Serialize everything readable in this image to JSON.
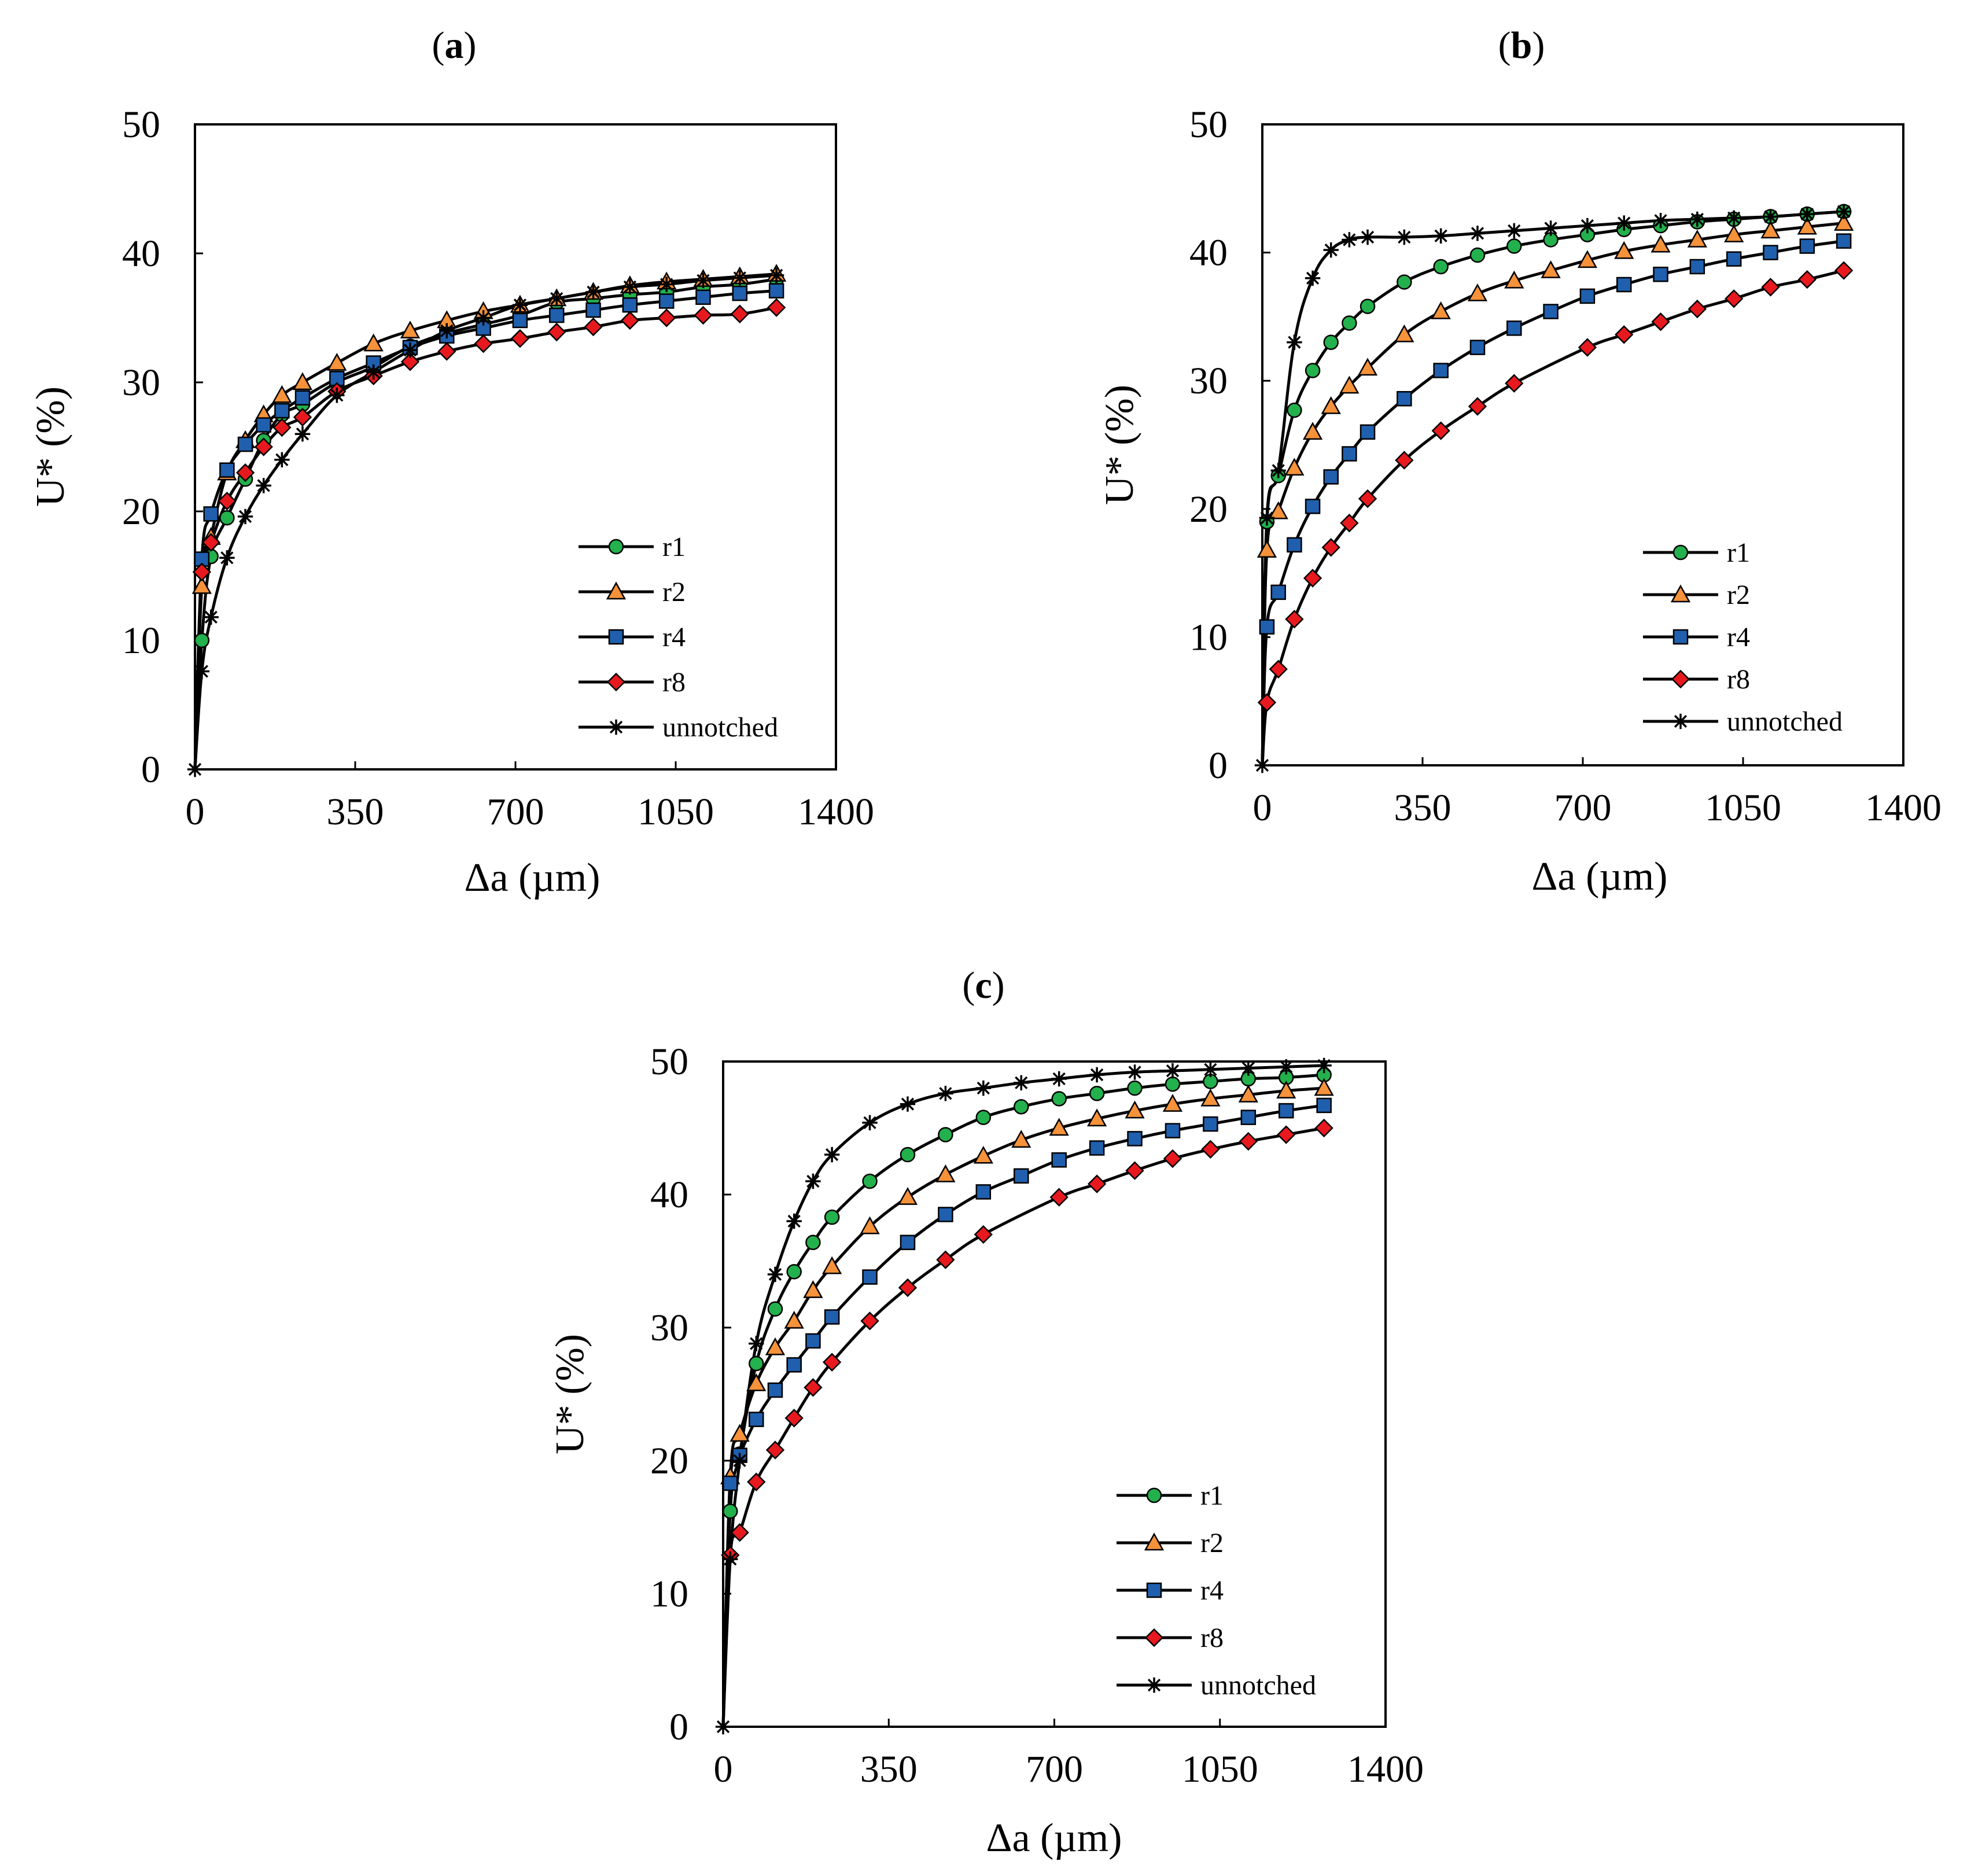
{
  "chart_data": [
    {
      "type": "line",
      "panel": "a",
      "title": "a",
      "xlabel": "Δa (µm)",
      "ylabel": "U* (%)",
      "xlim": [
        0,
        1400
      ],
      "ylim": [
        0,
        50
      ],
      "xticks": [
        0,
        350,
        700,
        1050,
        1400
      ],
      "yticks": [
        0,
        10,
        20,
        30,
        40,
        50
      ],
      "legend_position": "bottom-right",
      "series": [
        {
          "name": "r1",
          "marker": "circle",
          "color": "#22b14c",
          "x": [
            0,
            15,
            35,
            70,
            110,
            150,
            190,
            235,
            310,
            390,
            470,
            550,
            630,
            710,
            790,
            870,
            950,
            1030,
            1110,
            1190,
            1270
          ],
          "y": [
            0,
            10.0,
            16.5,
            19.5,
            22.5,
            25.5,
            27.5,
            28.3,
            30.0,
            31.2,
            32.8,
            33.8,
            34.5,
            35.2,
            36.2,
            36.5,
            36.8,
            37.0,
            37.4,
            37.6,
            38.0
          ]
        },
        {
          "name": "r2",
          "marker": "triangle",
          "color": "#f5923a",
          "x": [
            0,
            15,
            35,
            70,
            110,
            150,
            190,
            235,
            310,
            390,
            470,
            550,
            630,
            710,
            790,
            870,
            950,
            1030,
            1110,
            1190,
            1270
          ],
          "y": [
            0,
            14.2,
            18.0,
            23.0,
            25.5,
            27.5,
            29.0,
            30.0,
            31.5,
            33.0,
            34.0,
            34.8,
            35.5,
            36.0,
            36.5,
            37.0,
            37.5,
            37.8,
            38.0,
            38.2,
            38.4
          ]
        },
        {
          "name": "r4",
          "marker": "square",
          "color": "#1f5fad",
          "x": [
            0,
            15,
            35,
            70,
            110,
            150,
            190,
            235,
            310,
            390,
            470,
            550,
            630,
            710,
            790,
            870,
            950,
            1030,
            1110,
            1190,
            1270
          ],
          "y": [
            0,
            16.3,
            19.8,
            23.2,
            25.2,
            26.7,
            27.8,
            28.8,
            30.3,
            31.5,
            32.7,
            33.6,
            34.2,
            34.8,
            35.2,
            35.6,
            36.0,
            36.3,
            36.6,
            36.9,
            37.1
          ]
        },
        {
          "name": "r8",
          "marker": "diamond",
          "color": "#e8191e",
          "x": [
            0,
            15,
            35,
            70,
            110,
            150,
            190,
            235,
            310,
            390,
            470,
            550,
            630,
            710,
            790,
            870,
            950,
            1030,
            1110,
            1190,
            1270
          ],
          "y": [
            0,
            15.3,
            17.6,
            20.8,
            23.0,
            25.0,
            26.5,
            27.3,
            29.3,
            30.5,
            31.6,
            32.4,
            33.0,
            33.4,
            33.9,
            34.3,
            34.8,
            35.0,
            35.2,
            35.3,
            35.8
          ]
        },
        {
          "name": "unnotched",
          "marker": "star",
          "color": "#000000",
          "x": [
            0,
            15,
            35,
            70,
            110,
            150,
            190,
            235,
            310,
            390,
            470,
            550,
            630,
            710,
            790,
            870,
            950,
            1030,
            1110,
            1190,
            1270
          ],
          "y": [
            0,
            7.6,
            11.8,
            16.4,
            19.6,
            22.0,
            24.0,
            26.0,
            29.0,
            30.8,
            32.5,
            34.0,
            35.0,
            36.0,
            36.5,
            37.0,
            37.4,
            37.6,
            37.9,
            38.1,
            38.3
          ]
        }
      ]
    },
    {
      "type": "line",
      "panel": "b",
      "title": "b",
      "xlabel": "Δa (µm)",
      "ylabel": "U* (%)",
      "xlim": [
        0,
        1400
      ],
      "ylim": [
        0,
        50
      ],
      "xticks": [
        0,
        350,
        700,
        1050,
        1400
      ],
      "yticks": [
        0,
        10,
        20,
        30,
        40,
        50
      ],
      "legend_position": "bottom-right",
      "series": [
        {
          "name": "r1",
          "marker": "circle",
          "color": "#22b14c",
          "x": [
            0,
            10,
            35,
            70,
            110,
            150,
            190,
            230,
            310,
            390,
            470,
            550,
            630,
            710,
            790,
            870,
            950,
            1030,
            1110,
            1190,
            1270
          ],
          "y": [
            0,
            19.0,
            22.6,
            27.7,
            30.8,
            33.0,
            34.5,
            35.8,
            37.7,
            38.9,
            39.8,
            40.5,
            41.0,
            41.4,
            41.8,
            42.1,
            42.4,
            42.6,
            42.8,
            43.0,
            43.2
          ]
        },
        {
          "name": "r2",
          "marker": "triangle",
          "color": "#f5923a",
          "x": [
            0,
            10,
            35,
            70,
            110,
            150,
            190,
            230,
            310,
            390,
            470,
            550,
            630,
            710,
            790,
            870,
            950,
            1030,
            1110,
            1190,
            1270
          ],
          "y": [
            0,
            16.8,
            19.8,
            23.2,
            26.0,
            28.0,
            29.6,
            31.0,
            33.6,
            35.4,
            36.8,
            37.8,
            38.6,
            39.4,
            40.1,
            40.6,
            41.0,
            41.4,
            41.7,
            42.0,
            42.3
          ]
        },
        {
          "name": "r4",
          "marker": "square",
          "color": "#1f5fad",
          "x": [
            0,
            10,
            35,
            70,
            110,
            150,
            190,
            230,
            310,
            390,
            470,
            550,
            630,
            710,
            790,
            870,
            950,
            1030,
            1110,
            1190,
            1270
          ],
          "y": [
            0,
            10.8,
            13.5,
            17.2,
            20.2,
            22.5,
            24.3,
            26.0,
            28.6,
            30.8,
            32.6,
            34.1,
            35.4,
            36.6,
            37.5,
            38.3,
            38.9,
            39.5,
            40.0,
            40.5,
            40.9
          ]
        },
        {
          "name": "r8",
          "marker": "diamond",
          "color": "#e8191e",
          "x": [
            0,
            10,
            35,
            70,
            110,
            150,
            190,
            230,
            310,
            390,
            470,
            550,
            710,
            790,
            870,
            950,
            1030,
            1110,
            1190,
            1270
          ],
          "y": [
            0,
            4.9,
            7.5,
            11.4,
            14.6,
            17.0,
            18.9,
            20.8,
            23.8,
            26.1,
            28.0,
            29.8,
            32.6,
            33.6,
            34.6,
            35.6,
            36.4,
            37.3,
            37.9,
            38.6
          ]
        },
        {
          "name": "unnotched",
          "marker": "star",
          "color": "#000000",
          "x": [
            0,
            10,
            35,
            70,
            110,
            150,
            190,
            230,
            310,
            390,
            470,
            550,
            630,
            710,
            790,
            870,
            950,
            1030,
            1110,
            1190,
            1270
          ],
          "y": [
            0,
            19.3,
            23.0,
            33.0,
            38.0,
            40.2,
            41.0,
            41.2,
            41.2,
            41.3,
            41.5,
            41.7,
            41.9,
            42.1,
            42.3,
            42.5,
            42.6,
            42.7,
            42.8,
            43.0,
            43.2
          ]
        }
      ]
    },
    {
      "type": "line",
      "panel": "c",
      "title": "c",
      "xlabel": "Δa (µm)",
      "ylabel": "U* (%)",
      "xlim": [
        0,
        1400
      ],
      "ylim": [
        0,
        50
      ],
      "xticks": [
        0,
        350,
        700,
        1050,
        1400
      ],
      "yticks": [
        0,
        10,
        20,
        30,
        40,
        50
      ],
      "legend_position": "bottom-right",
      "series": [
        {
          "name": "r1",
          "marker": "circle",
          "color": "#22b14c",
          "x": [
            0,
            15,
            35,
            70,
            110,
            150,
            190,
            230,
            310,
            390,
            470,
            550,
            630,
            710,
            790,
            870,
            950,
            1030,
            1110,
            1190,
            1270
          ],
          "y": [
            0,
            16.2,
            20.5,
            27.3,
            31.4,
            34.2,
            36.4,
            38.3,
            41.0,
            43.0,
            44.5,
            45.8,
            46.6,
            47.2,
            47.6,
            48.0,
            48.3,
            48.5,
            48.7,
            48.8,
            49.0
          ]
        },
        {
          "name": "r2",
          "marker": "triangle",
          "color": "#f5923a",
          "x": [
            0,
            15,
            35,
            70,
            110,
            150,
            190,
            230,
            310,
            390,
            470,
            550,
            630,
            710,
            790,
            870,
            950,
            1030,
            1110,
            1190,
            1270
          ],
          "y": [
            0,
            18.8,
            22.0,
            25.8,
            28.5,
            30.5,
            32.8,
            34.6,
            37.6,
            39.8,
            41.5,
            42.9,
            44.1,
            45.0,
            45.7,
            46.3,
            46.8,
            47.2,
            47.5,
            47.8,
            48.0
          ]
        },
        {
          "name": "r4",
          "marker": "square",
          "color": "#1f5fad",
          "x": [
            0,
            15,
            35,
            70,
            110,
            150,
            190,
            230,
            310,
            390,
            470,
            550,
            630,
            710,
            790,
            870,
            950,
            1030,
            1110,
            1190,
            1270
          ],
          "y": [
            0,
            18.3,
            20.4,
            23.1,
            25.3,
            27.2,
            29.0,
            30.8,
            33.8,
            36.4,
            38.5,
            40.2,
            41.4,
            42.6,
            43.5,
            44.2,
            44.8,
            45.3,
            45.8,
            46.3,
            46.7
          ]
        },
        {
          "name": "r8",
          "marker": "diamond",
          "color": "#e8191e",
          "x": [
            0,
            15,
            35,
            70,
            110,
            150,
            190,
            230,
            310,
            390,
            470,
            550,
            710,
            790,
            870,
            950,
            1030,
            1110,
            1190,
            1270
          ],
          "y": [
            0,
            12.9,
            14.6,
            18.4,
            20.8,
            23.2,
            25.5,
            27.4,
            30.5,
            33.0,
            35.1,
            37.0,
            39.8,
            40.8,
            41.8,
            42.7,
            43.4,
            44.0,
            44.5,
            45.0
          ]
        },
        {
          "name": "unnotched",
          "marker": "star",
          "color": "#000000",
          "x": [
            0,
            15,
            35,
            70,
            110,
            150,
            190,
            230,
            310,
            390,
            470,
            550,
            630,
            710,
            790,
            870,
            950,
            1030,
            1110,
            1190,
            1270
          ],
          "y": [
            0,
            12.6,
            20.0,
            28.8,
            34.0,
            38.0,
            41.0,
            43.0,
            45.4,
            46.8,
            47.6,
            48.0,
            48.4,
            48.7,
            49.0,
            49.2,
            49.3,
            49.4,
            49.5,
            49.6,
            49.7
          ]
        }
      ]
    }
  ]
}
